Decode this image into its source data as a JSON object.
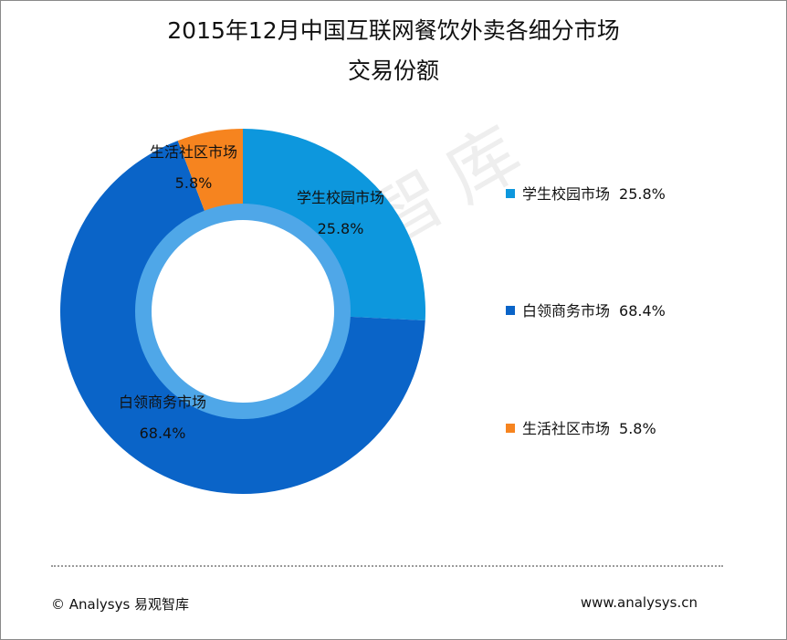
{
  "title": {
    "line1": "2015年12月中国互联网餐饮外卖各细分市场",
    "line2": "交易份额"
  },
  "chart_data": {
    "type": "pie",
    "variant": "donut",
    "title": "2015年12月中国互联网餐饮外卖各细分市场交易份额",
    "legend_position": "right",
    "slices": [
      {
        "name": "学生校园市场",
        "value": 25.8,
        "label": "25.8%",
        "color": "#0d97dd"
      },
      {
        "name": "白领商务市场",
        "value": 68.4,
        "label": "68.4%",
        "color": "#0a64c8"
      },
      {
        "name": "生活社区市场",
        "value": 5.8,
        "label": "5.8%",
        "color": "#f6841f"
      }
    ],
    "inner_ring_color": "#4fa7e8"
  },
  "watermark": "易观智库",
  "footer": {
    "copyright": "© Analysys 易观智库",
    "website": "www.analysys.cn"
  }
}
